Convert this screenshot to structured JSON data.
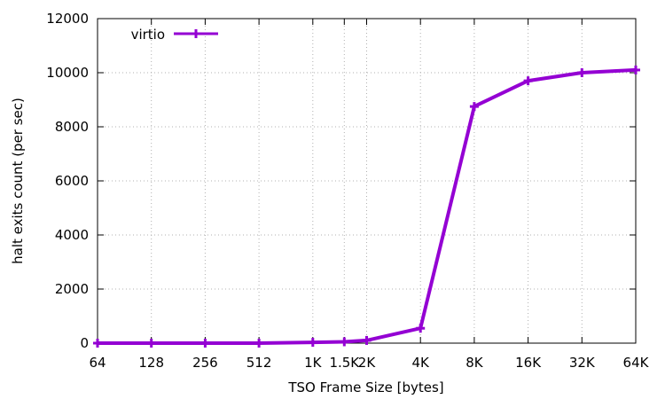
{
  "chart_data": {
    "type": "line",
    "title": "",
    "xlabel": "TSO Frame Size [bytes]",
    "ylabel": "halt exits count (per sec)",
    "x_scale": "log2",
    "x": [
      64,
      128,
      256,
      512,
      1024,
      1536,
      2048,
      4096,
      8192,
      16384,
      32768,
      65536
    ],
    "x_tick_labels": [
      "64",
      "128",
      "256",
      "512",
      "1K",
      "1.5K",
      "2K",
      "4K",
      "8K",
      "16K",
      "32K",
      "64K"
    ],
    "ylim": [
      0,
      12000
    ],
    "y_ticks": [
      0,
      2000,
      4000,
      6000,
      8000,
      10000,
      12000
    ],
    "y_tick_labels": [
      "0",
      "2000",
      "4000",
      "6000",
      "8000",
      "10000",
      "12000"
    ],
    "grid": true,
    "legend_position": "top-left",
    "series": [
      {
        "name": "virtio",
        "color": "#9400d3",
        "marker": "plus",
        "values": [
          0,
          0,
          0,
          0,
          30,
          50,
          100,
          550,
          8750,
          9700,
          10000,
          10100
        ]
      }
    ]
  }
}
